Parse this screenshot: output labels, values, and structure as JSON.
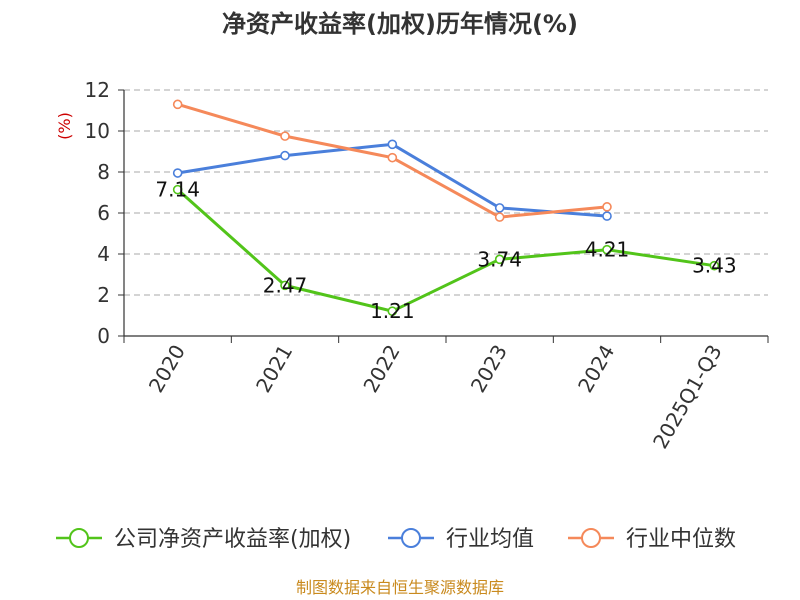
{
  "chart_data": {
    "type": "line",
    "title": "净资产收益率(加权)历年情况(%)",
    "ylabel": "(%)",
    "xlabel": "",
    "categories": [
      "2020",
      "2021",
      "2022",
      "2023",
      "2024",
      "2025Q1-Q3"
    ],
    "ylim": [
      0,
      12
    ],
    "yticks": [
      0,
      2,
      4,
      6,
      8,
      10,
      12
    ],
    "grid": true,
    "legend_position": "bottom",
    "series": [
      {
        "name": "公司净资产收益率(加权)",
        "color": "#52c41a",
        "values": [
          7.14,
          2.47,
          1.21,
          3.74,
          4.21,
          3.43
        ],
        "labels": [
          "7.14",
          "2.47",
          "1.21",
          "3.74",
          "4.21",
          "3.43"
        ]
      },
      {
        "name": "行业均值",
        "color": "#4a7fdb",
        "values": [
          7.95,
          8.8,
          9.35,
          6.25,
          5.85,
          null
        ]
      },
      {
        "name": "行业中位数",
        "color": "#f5895a",
        "values": [
          11.3,
          9.75,
          8.7,
          5.8,
          6.3,
          null
        ]
      }
    ],
    "source": "制图数据来自恒生聚源数据库"
  }
}
